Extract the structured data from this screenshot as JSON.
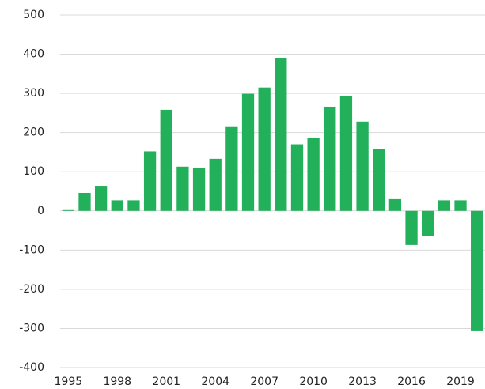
{
  "chart_data": {
    "type": "bar",
    "categories": [
      "1995",
      null,
      null,
      "1998",
      null,
      null,
      "2001",
      null,
      null,
      "2004",
      null,
      null,
      "2007",
      null,
      null,
      "2010",
      null,
      null,
      "2013",
      null,
      null,
      "2016",
      null,
      null,
      "2019",
      null
    ],
    "values": [
      4,
      46,
      64,
      27,
      27,
      152,
      258,
      113,
      109,
      133,
      216,
      299,
      315,
      391,
      170,
      186,
      266,
      293,
      228,
      157,
      30,
      -87,
      -65,
      27,
      27,
      -307
    ],
    "color": "#22b05a",
    "ylim": [
      -400,
      500
    ],
    "yticks": [
      -400,
      -300,
      -200,
      -100,
      0,
      100,
      200,
      300,
      400,
      500
    ],
    "grid": true
  }
}
